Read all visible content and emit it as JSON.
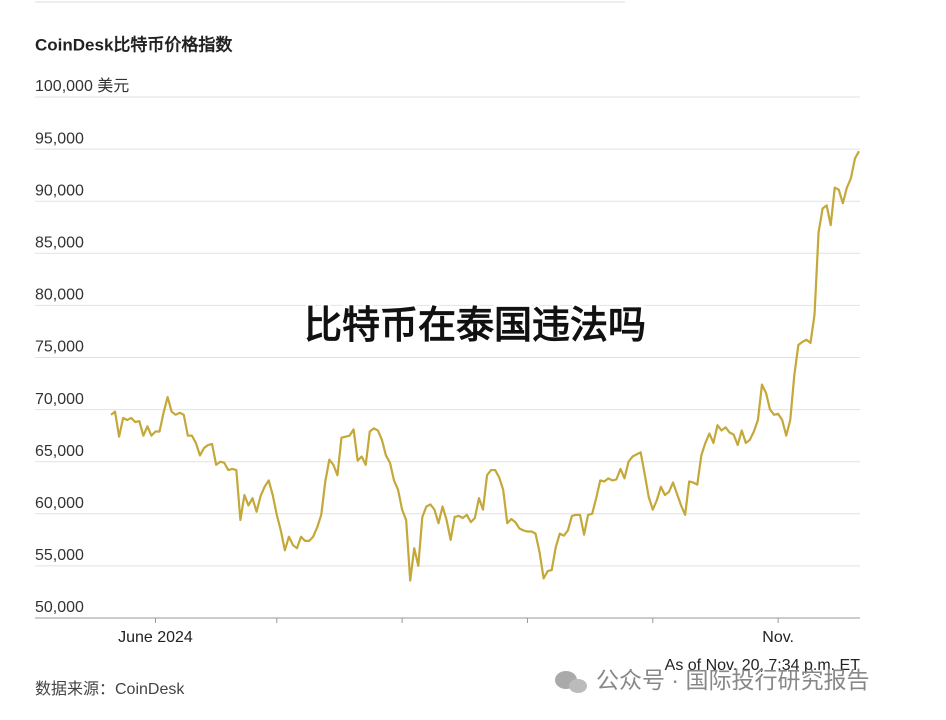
{
  "chart_data": {
    "type": "line",
    "title": "CoinDesk比特币价格指数",
    "source": "数据来源：CoinDesk",
    "note": "As of Nov. 20, 7:34 p.m. ET",
    "headline": "比特币在泰国违法吗",
    "watermark": "公众号 · 国际投行研究报告",
    "x": [
      0,
      1,
      2,
      3,
      4,
      5,
      6,
      7,
      8,
      9,
      10,
      11,
      12,
      13,
      14,
      15,
      16,
      17,
      18,
      19,
      20,
      21,
      22,
      23,
      24,
      25,
      26,
      27,
      28,
      29,
      30,
      31,
      32,
      33,
      34,
      35,
      36,
      37,
      38,
      39,
      40,
      41,
      42,
      43,
      44,
      45,
      46,
      47,
      48,
      49,
      50,
      51,
      52,
      53,
      54,
      55,
      56,
      57,
      58,
      59,
      60,
      61,
      62,
      63,
      64,
      65,
      66,
      67,
      68,
      69,
      70,
      71,
      72,
      73,
      74,
      75,
      76,
      77,
      78,
      79,
      80,
      81,
      82,
      83,
      84,
      85,
      86,
      87,
      88,
      89,
      90,
      91,
      92,
      93,
      94,
      95,
      96,
      97,
      98,
      99,
      100,
      101,
      102,
      103,
      104,
      105,
      106,
      107,
      108,
      109,
      110,
      111,
      112,
      113,
      114,
      115,
      116,
      117,
      118,
      119,
      120,
      121,
      122,
      123,
      124,
      125,
      126,
      127,
      128,
      129,
      130,
      131,
      132,
      133,
      134,
      135,
      136,
      137,
      138,
      139,
      140,
      141,
      142,
      143,
      144,
      145,
      146,
      147,
      148,
      149,
      150,
      151,
      152,
      153,
      154,
      155,
      156,
      157,
      158,
      159,
      160,
      161,
      162,
      163,
      164,
      165,
      166,
      167,
      168,
      169,
      170,
      171,
      172,
      173,
      174,
      175,
      176,
      177,
      178,
      179,
      180,
      181,
      182,
      183,
      184,
      185
    ],
    "series": [
      {
        "color": "#c4a83a",
        "values": [
          69500,
          69800,
          67400,
          69200,
          69000,
          69200,
          68800,
          68900,
          67500,
          68400,
          67500,
          67900,
          67900,
          69700,
          71200,
          69800,
          69500,
          69700,
          69500,
          67500,
          67500,
          66800,
          65600,
          66300,
          66600,
          66700,
          64700,
          65000,
          64900,
          64200,
          64300,
          64200,
          59400,
          61800,
          60800,
          61500,
          60200,
          61700,
          62600,
          63200,
          61800,
          59900,
          58400,
          56500,
          57800,
          57000,
          56700,
          57800,
          57400,
          57400,
          57800,
          58700,
          59900,
          63100,
          65200,
          64700,
          63700,
          67300,
          67400,
          67500,
          68100,
          65100,
          65500,
          64700,
          67900,
          68200,
          68000,
          67100,
          65600,
          64900,
          63200,
          62300,
          60400,
          59400,
          53600,
          56700,
          55000,
          59700,
          60700,
          60900,
          60400,
          59100,
          60700,
          59400,
          57500,
          59700,
          59800,
          59600,
          59900,
          59200,
          59600,
          61500,
          60400,
          63700,
          64200,
          64200,
          63500,
          62300,
          59100,
          59500,
          59200,
          58600,
          58400,
          58300,
          58300,
          58100,
          56300,
          53800,
          54500,
          54600,
          56800,
          58100,
          57900,
          58400,
          59800,
          59900,
          59900,
          58000,
          59900,
          60000,
          61500,
          63200,
          63100,
          63400,
          63200,
          63300,
          64300,
          63400,
          65000,
          65500,
          65700,
          65900,
          63800,
          61600,
          60400,
          61300,
          62600,
          61800,
          62100,
          63000,
          61900,
          60800,
          59900,
          63100,
          63000,
          62800,
          65600,
          66800,
          67700,
          66800,
          68500,
          68000,
          68300,
          67800,
          67600,
          66600,
          68000,
          66800,
          67100,
          67900,
          69000,
          72400,
          71600,
          70000,
          69500,
          69600,
          69000,
          67500,
          69000,
          73300,
          76200,
          76500,
          76700,
          76400,
          79100,
          87000,
          89300,
          89600,
          87700,
          91300,
          91100,
          89800,
          91300,
          92200,
          94100,
          94800
        ]
      }
    ],
    "xlim": [
      0,
      185
    ],
    "xticks": [
      {
        "value": 11,
        "label": "June 2024"
      },
      {
        "value": 165,
        "label": "Nov."
      }
    ],
    "xminorticks": [
      41,
      72,
      103,
      134
    ],
    "ylim": [
      50000,
      100000
    ],
    "yticks": [
      {
        "value": 50000,
        "label": "50,000"
      },
      {
        "value": 55000,
        "label": "55,000"
      },
      {
        "value": 60000,
        "label": "60,000"
      },
      {
        "value": 65000,
        "label": "65,000"
      },
      {
        "value": 70000,
        "label": "70,000"
      },
      {
        "value": 75000,
        "label": "75,000"
      },
      {
        "value": 80000,
        "label": "80,000"
      },
      {
        "value": 85000,
        "label": "85,000"
      },
      {
        "value": 90000,
        "label": "90,000"
      },
      {
        "value": 95000,
        "label": "95,000"
      },
      {
        "value": 100000,
        "label": "100,000 美元"
      }
    ],
    "grid": true
  }
}
